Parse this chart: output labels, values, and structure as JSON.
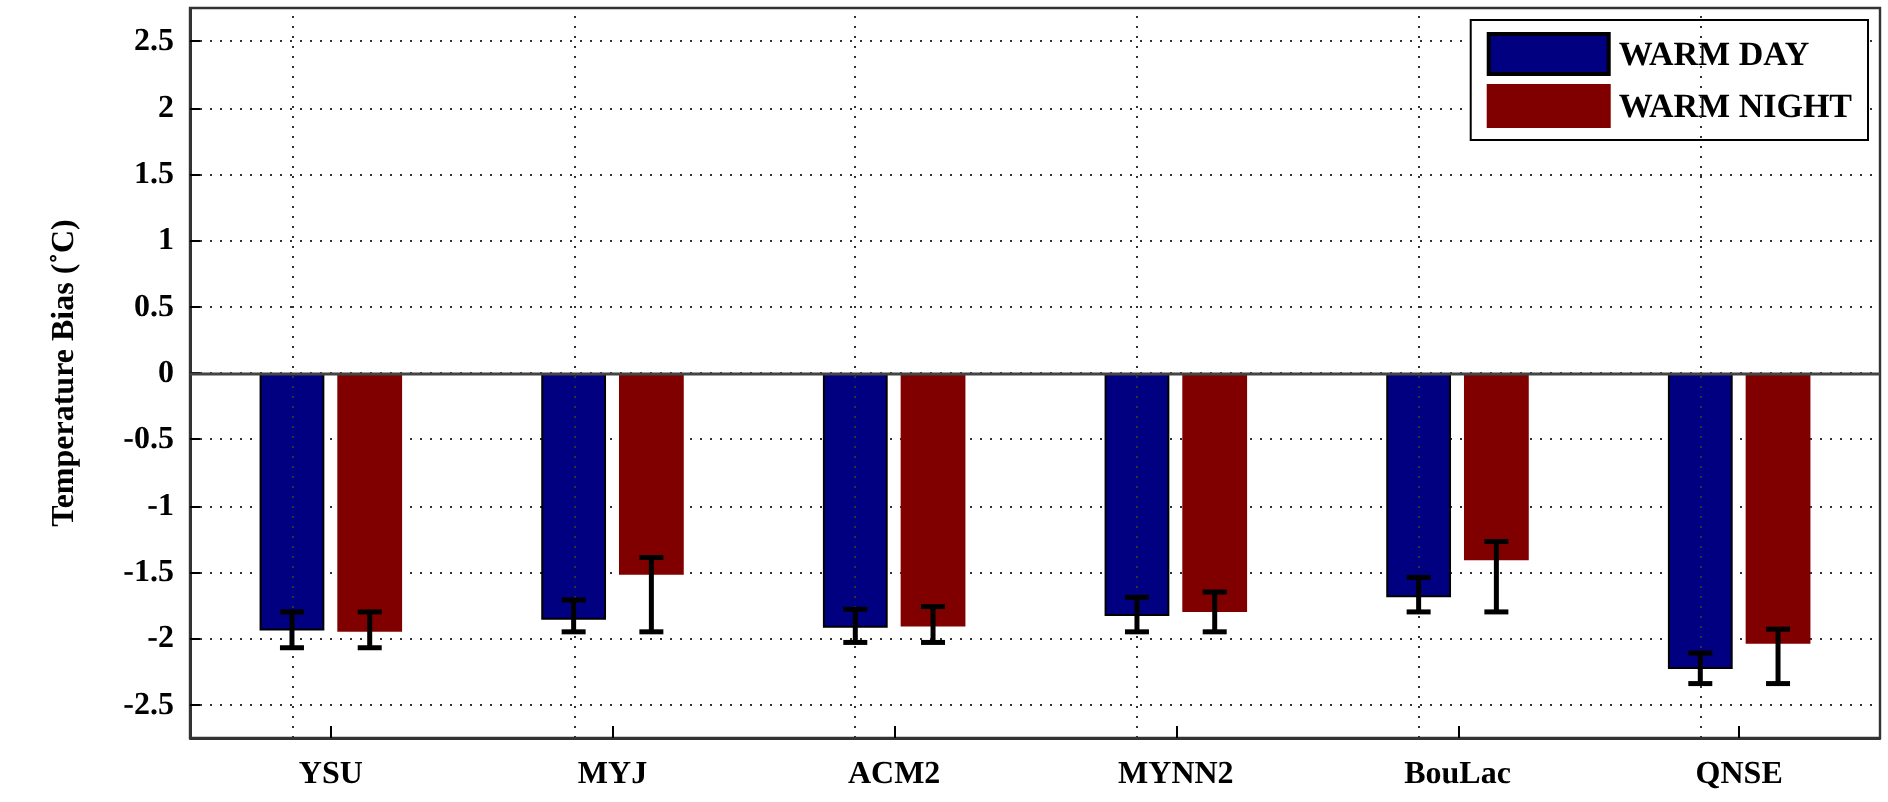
{
  "chart_data": {
    "type": "bar",
    "ylabel": "Temperature Bias (˚C)",
    "categories": [
      "YSU",
      "MYJ",
      "ACM2",
      "MYNN2",
      "BouLac",
      "QNSE"
    ],
    "series": [
      {
        "name": "WARM DAY",
        "color": "#000080",
        "values": [
          -1.94,
          -1.86,
          -1.92,
          -1.83,
          -1.69,
          -2.23
        ],
        "errors": [
          [
            -2.07,
            -1.8
          ],
          [
            -1.95,
            -1.71
          ],
          [
            -2.03,
            -1.78
          ],
          [
            -1.95,
            -1.69
          ],
          [
            -1.8,
            -1.54
          ],
          [
            -2.34,
            -2.11
          ]
        ]
      },
      {
        "name": "WARM NIGHT",
        "color": "#800000",
        "values": [
          -1.95,
          -1.52,
          -1.91,
          -1.8,
          -1.41,
          -2.04
        ],
        "errors": [
          [
            -2.07,
            -1.8
          ],
          [
            -1.95,
            -1.39
          ],
          [
            -2.03,
            -1.76
          ],
          [
            -1.95,
            -1.65
          ],
          [
            -1.8,
            -1.27
          ],
          [
            -2.34,
            -1.93
          ]
        ]
      }
    ],
    "ylim": [
      -2.75,
      2.75
    ],
    "yticks": [
      -2.5,
      -2,
      -1.5,
      -1,
      -0.5,
      0,
      0.5,
      1,
      1.5,
      2,
      2.5
    ],
    "ref_lines": [
      {
        "axis": "y",
        "value": 0,
        "color": "#444444",
        "line_style": "solid"
      }
    ],
    "grid": true,
    "legend": "top right"
  }
}
